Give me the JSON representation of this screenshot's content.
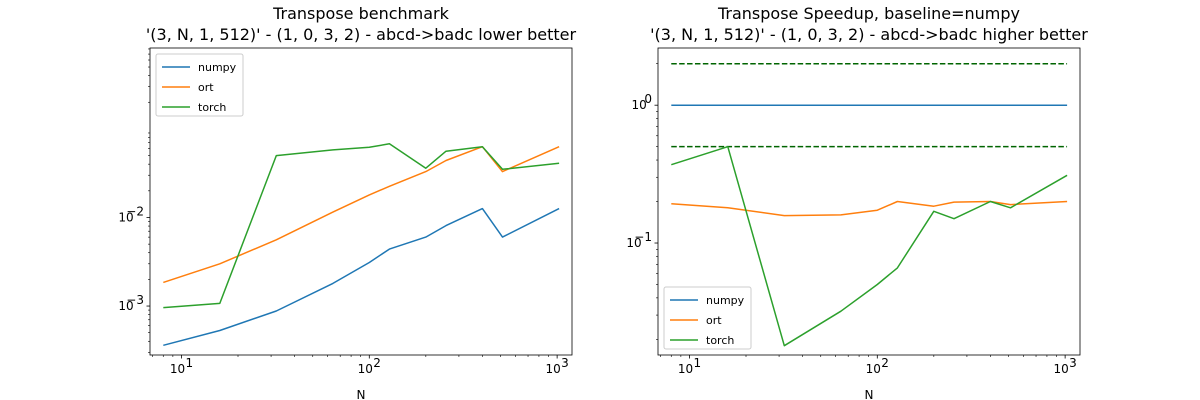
{
  "chart_data": [
    {
      "type": "line",
      "title_line1": "Transpose benchmark",
      "title_line2": "'(3, N, 1, 512)' - (1, 0, 3, 2) - abcd->badc lower better",
      "xlabel": "N",
      "ylabel": "",
      "xscale": "log",
      "yscale": "log",
      "xlim": [
        6.8,
        1200
      ],
      "ylim": [
        0.00028,
        0.82
      ],
      "xticks": [
        {
          "v": 10,
          "b": "10",
          "e": "1"
        },
        {
          "v": 100,
          "b": "10",
          "e": "2"
        },
        {
          "v": 1000,
          "b": "10",
          "e": "3"
        }
      ],
      "yticks": [
        {
          "v": 0.001,
          "b": "10",
          "e": "−3"
        },
        {
          "v": 0.01,
          "b": "10",
          "e": "−2"
        }
      ],
      "legend_position": "upper-left",
      "grid": false,
      "series": [
        {
          "name": "numpy",
          "color": "#1f77b4",
          "x": [
            8,
            16,
            32,
            64,
            100,
            128,
            200,
            256,
            400,
            512,
            1024
          ],
          "y": [
            0.00036,
            0.00053,
            0.00088,
            0.0018,
            0.0031,
            0.0044,
            0.006,
            0.0081,
            0.0126,
            0.006,
            0.0126
          ]
        },
        {
          "name": "ort",
          "color": "#ff7f0e",
          "x": [
            8,
            16,
            32,
            64,
            100,
            128,
            200,
            256,
            400,
            512,
            1024
          ],
          "y": [
            0.00185,
            0.003,
            0.0056,
            0.0115,
            0.018,
            0.0225,
            0.033,
            0.044,
            0.063,
            0.033,
            0.063
          ]
        },
        {
          "name": "torch",
          "color": "#2ca02c",
          "x": [
            8,
            16,
            32,
            64,
            100,
            128,
            200,
            256,
            400,
            512,
            1024
          ],
          "y": [
            0.00096,
            0.00107,
            0.05,
            0.058,
            0.062,
            0.068,
            0.036,
            0.056,
            0.063,
            0.035,
            0.041
          ]
        }
      ]
    },
    {
      "type": "line",
      "title_line1": "Transpose Speedup, baseline=numpy",
      "title_line2": "'(3, N, 1, 512)' - (1, 0, 3, 2) - abcd->badc higher better",
      "xlabel": "N",
      "ylabel": "",
      "xscale": "log",
      "yscale": "log",
      "xlim": [
        6.8,
        1200
      ],
      "ylim": [
        0.0154,
        2.6
      ],
      "xticks": [
        {
          "v": 10,
          "b": "10",
          "e": "1"
        },
        {
          "v": 100,
          "b": "10",
          "e": "2"
        },
        {
          "v": 1000,
          "b": "10",
          "e": "3"
        }
      ],
      "yticks": [
        {
          "v": 0.1,
          "b": "10",
          "e": "−1"
        },
        {
          "v": 1,
          "b": "10",
          "e": "0"
        }
      ],
      "legend_position": "lower-left",
      "grid": false,
      "reference_lines": [
        {
          "y": 2,
          "color": "#006400",
          "style": "dashed"
        },
        {
          "y": 0.5,
          "color": "#006400",
          "style": "dashed"
        }
      ],
      "series": [
        {
          "name": "numpy",
          "color": "#1f77b4",
          "x": [
            8,
            1024
          ],
          "y": [
            1,
            1
          ]
        },
        {
          "name": "ort",
          "color": "#ff7f0e",
          "x": [
            8,
            16,
            32,
            64,
            100,
            128,
            200,
            256,
            400,
            512,
            1024
          ],
          "y": [
            0.193,
            0.18,
            0.158,
            0.16,
            0.173,
            0.2,
            0.185,
            0.198,
            0.2,
            0.19,
            0.2
          ]
        },
        {
          "name": "torch",
          "color": "#2ca02c",
          "x": [
            8,
            16,
            32,
            64,
            100,
            128,
            200,
            256,
            400,
            512,
            1024
          ],
          "y": [
            0.37,
            0.5,
            0.018,
            0.032,
            0.05,
            0.066,
            0.17,
            0.15,
            0.2,
            0.18,
            0.31
          ]
        }
      ]
    }
  ]
}
